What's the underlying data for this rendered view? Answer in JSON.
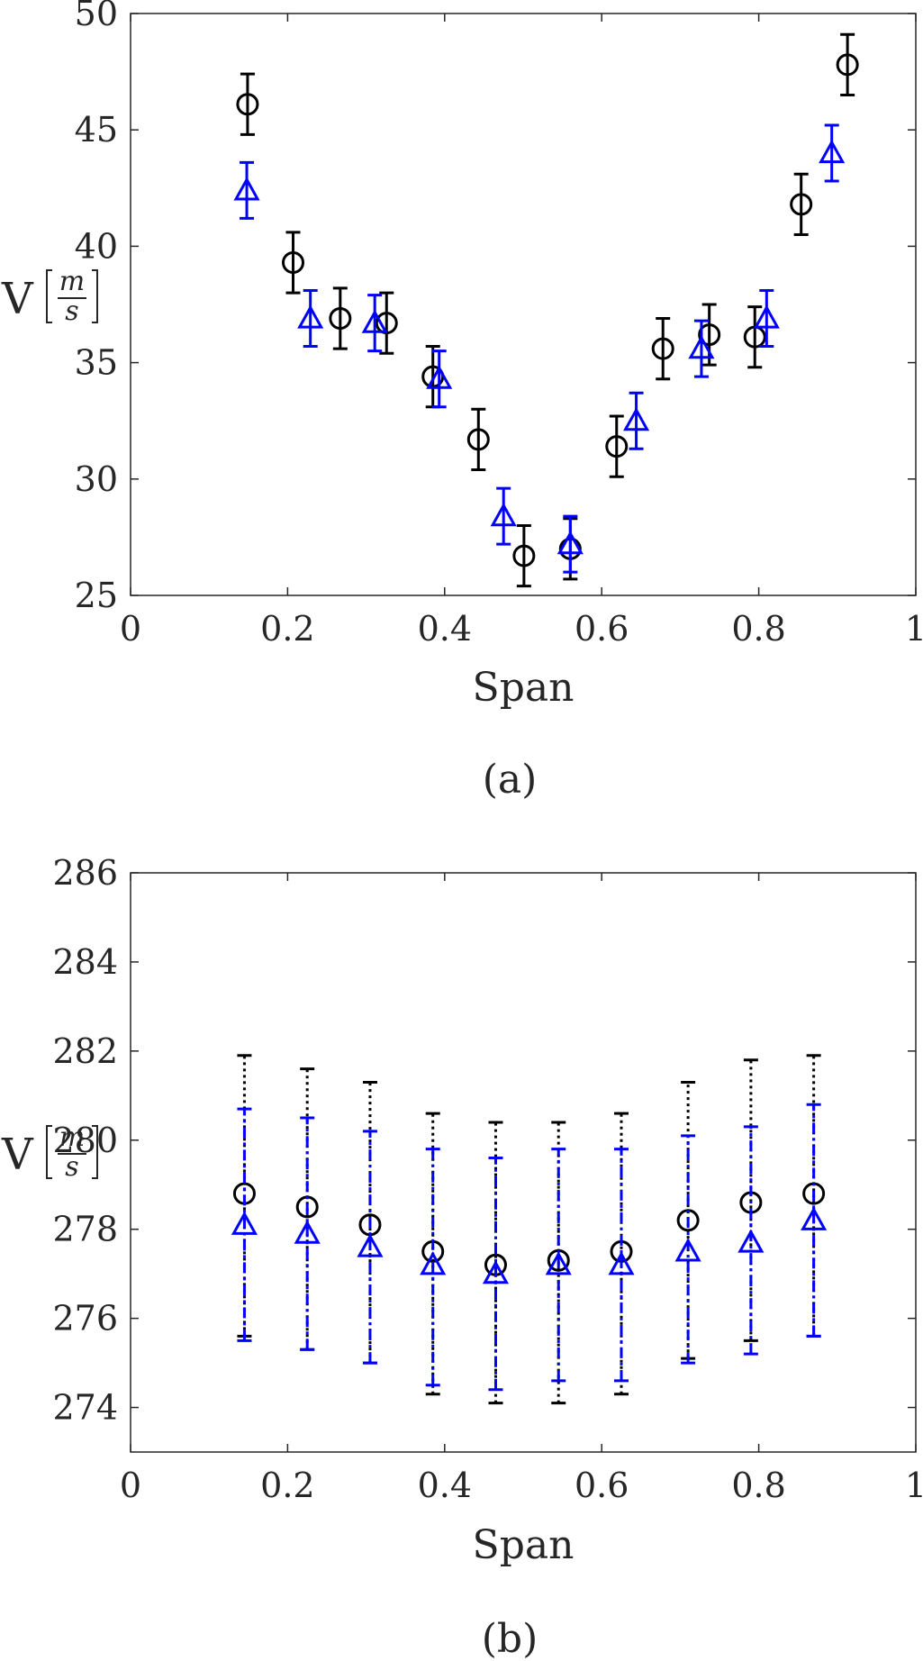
{
  "chart_data": [
    {
      "type": "scatter",
      "panel_label": "(a)",
      "xlabel": "Span",
      "ylabel": "V",
      "ylabel_unit_num": "m",
      "ylabel_unit_den": "s",
      "xlim": [
        0,
        1
      ],
      "ylim": [
        25,
        50
      ],
      "xticks": [
        "0",
        "0.2",
        "0.4",
        "0.6",
        "0.8",
        "1"
      ],
      "yticks": [
        "25",
        "30",
        "35",
        "40",
        "45",
        "50"
      ],
      "grid": false,
      "legend": "none",
      "series": [
        {
          "marker": "circle",
          "color": "#000000",
          "errorbar_style": "solid",
          "x": [
            0.149,
            0.207,
            0.267,
            0.326,
            0.385,
            0.443,
            0.501,
            0.56,
            0.619,
            0.678,
            0.737,
            0.795,
            0.854,
            0.913
          ],
          "y": [
            46.1,
            39.3,
            36.9,
            36.7,
            34.4,
            31.7,
            26.7,
            27.0,
            31.4,
            35.6,
            36.2,
            36.1,
            41.8,
            47.8
          ],
          "err": [
            1.3,
            1.3,
            1.3,
            1.3,
            1.3,
            1.3,
            1.3,
            1.3,
            1.3,
            1.3,
            1.3,
            1.3,
            1.3,
            1.3
          ]
        },
        {
          "marker": "triangle",
          "color": "#0000ff",
          "errorbar_style": "solid",
          "x": [
            0.148,
            0.229,
            0.311,
            0.393,
            0.475,
            0.56,
            0.644,
            0.727,
            0.81,
            0.893
          ],
          "y": [
            42.4,
            36.9,
            36.7,
            34.3,
            28.4,
            27.2,
            32.5,
            35.6,
            36.9,
            44.0
          ],
          "err": [
            1.2,
            1.2,
            1.2,
            1.2,
            1.2,
            1.2,
            1.2,
            1.2,
            1.2,
            1.2
          ]
        }
      ]
    },
    {
      "type": "scatter",
      "panel_label": "(b)",
      "xlabel": "Span",
      "ylabel": "V",
      "ylabel_unit_num": "m",
      "ylabel_unit_den": "s",
      "xlim": [
        0,
        1
      ],
      "ylim": [
        273,
        286
      ],
      "xticks": [
        "0",
        "0.2",
        "0.4",
        "0.6",
        "0.8",
        "1"
      ],
      "yticks": [
        "274",
        "276",
        "278",
        "280",
        "282",
        "284",
        "286"
      ],
      "ytick_values": [
        274,
        276,
        278,
        280,
        282,
        284,
        286
      ],
      "grid": false,
      "legend": "none",
      "series": [
        {
          "marker": "circle",
          "color": "#000000",
          "errorbar_style": "dotted",
          "x": [
            0.145,
            0.225,
            0.305,
            0.385,
            0.465,
            0.545,
            0.625,
            0.71,
            0.79,
            0.87
          ],
          "y": [
            278.8,
            278.5,
            278.1,
            277.5,
            277.2,
            277.3,
            277.5,
            278.2,
            278.6,
            278.8
          ],
          "err_low": [
            275.6,
            275.3,
            275.0,
            274.3,
            274.1,
            274.1,
            274.3,
            275.1,
            275.5,
            275.6
          ],
          "err_high": [
            281.9,
            281.6,
            281.3,
            280.6,
            280.4,
            280.4,
            280.6,
            281.3,
            281.8,
            281.9
          ]
        },
        {
          "marker": "triangle",
          "color": "#0000ff",
          "errorbar_style": "dashdot",
          "x": [
            0.145,
            0.225,
            0.305,
            0.385,
            0.465,
            0.545,
            0.625,
            0.71,
            0.79,
            0.87
          ],
          "y": [
            278.1,
            277.9,
            277.6,
            277.2,
            277.0,
            277.2,
            277.2,
            277.5,
            277.7,
            278.2
          ],
          "err_low": [
            275.5,
            275.3,
            275.0,
            274.5,
            274.4,
            274.6,
            274.6,
            275.0,
            275.2,
            275.6
          ],
          "err_high": [
            280.7,
            280.5,
            280.2,
            279.8,
            279.6,
            279.8,
            279.8,
            280.1,
            280.3,
            280.8
          ]
        }
      ]
    }
  ]
}
